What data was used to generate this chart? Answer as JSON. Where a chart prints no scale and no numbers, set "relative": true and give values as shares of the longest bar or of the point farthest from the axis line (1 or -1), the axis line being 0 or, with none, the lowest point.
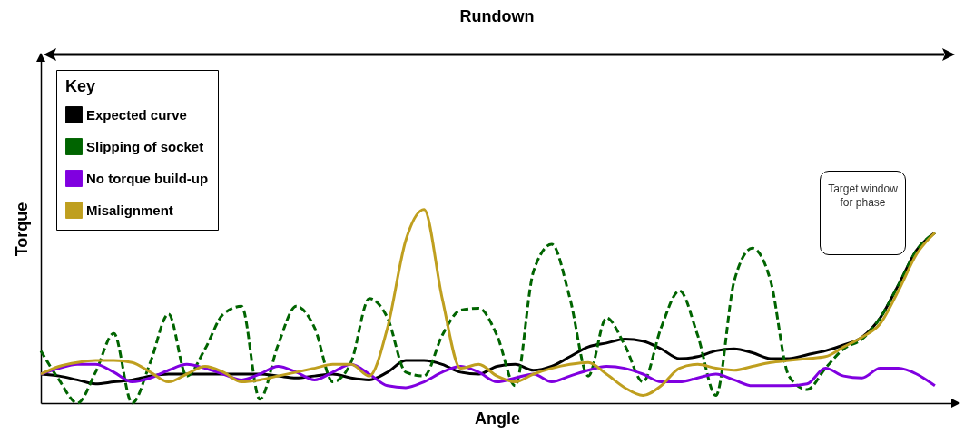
{
  "chart_data": {
    "type": "line",
    "title": "Rundown",
    "xlabel": "Angle",
    "ylabel": "Torque",
    "legend_title": "Key",
    "legend": "top left",
    "relative": true,
    "line_style": "solid",
    "categories": [
      null,
      null,
      null,
      null,
      null,
      null,
      null,
      null,
      null,
      null,
      null,
      null,
      null,
      null,
      null,
      null,
      null,
      null,
      null,
      null,
      null,
      null,
      null,
      null,
      null,
      null,
      null,
      null,
      null,
      null,
      null,
      null,
      null,
      null,
      null,
      null,
      null,
      null,
      null,
      null,
      null,
      null,
      null,
      null,
      null,
      null,
      null,
      null,
      null,
      null
    ],
    "series": [
      {
        "name": "Expected curve",
        "color": "#000000",
        "values": [
          0.15,
          0.14,
          0.12,
          0.1,
          0.11,
          0.12,
          0.14,
          0.15,
          0.15,
          0.15,
          0.15,
          0.15,
          0.15,
          0.14,
          0.13,
          0.14,
          0.15,
          0.13,
          0.12,
          0.16,
          0.22,
          0.22,
          0.2,
          0.16,
          0.15,
          0.19,
          0.2,
          0.17,
          0.19,
          0.24,
          0.29,
          0.31,
          0.33,
          0.32,
          0.28,
          0.23,
          0.24,
          0.27,
          0.28,
          0.26,
          0.23,
          0.23,
          0.25,
          0.27,
          0.3,
          0.34,
          0.44,
          0.61,
          0.79,
          0.88
        ]
      },
      {
        "name": "Slipping of socket",
        "color": "#006400",
        "line_style": "dashed",
        "values": [
          0.27,
          0.12,
          0,
          0.16,
          0.36,
          0,
          0.21,
          0.46,
          0.14,
          0.28,
          0.46,
          0.5,
          0.02,
          0.3,
          0.5,
          0.39,
          0.11,
          0.21,
          0.54,
          0.44,
          0.16,
          0.14,
          0.35,
          0.48,
          0.49,
          0.35,
          0.09,
          0.68,
          0.82,
          0.54,
          0.14,
          0.44,
          0.3,
          0.11,
          0.39,
          0.58,
          0.35,
          0.04,
          0.63,
          0.8,
          0.63,
          0.14,
          0.07,
          0.18,
          0.28,
          0.33,
          0.44,
          0.61,
          0.79,
          0.88
        ]
      },
      {
        "name": "No torque build-up",
        "color": "#8000e0",
        "values": [
          0.15,
          0.18,
          0.2,
          0.2,
          0.16,
          0.11,
          0.13,
          0.17,
          0.2,
          0.18,
          0.15,
          0.12,
          0.15,
          0.19,
          0.16,
          0.12,
          0.16,
          0.2,
          0.15,
          0.09,
          0.08,
          0.11,
          0.16,
          0.19,
          0.16,
          0.11,
          0.13,
          0.15,
          0.11,
          0.14,
          0.17,
          0.19,
          0.18,
          0.15,
          0.11,
          0.11,
          0.13,
          0.15,
          0.12,
          0.09,
          0.09,
          0.09,
          0.1,
          0.18,
          0.14,
          0.13,
          0.18,
          0.18,
          0.15,
          0.09
        ]
      },
      {
        "name": "Misalignment",
        "color": "#bf9f1f",
        "values": [
          0.15,
          0.19,
          0.21,
          0.22,
          0.22,
          0.21,
          0.16,
          0.11,
          0.15,
          0.19,
          0.16,
          0.11,
          0.12,
          0.14,
          0.16,
          0.18,
          0.2,
          0.2,
          0.14,
          0.39,
          0.84,
          1.0,
          0.54,
          0.18,
          0.2,
          0.14,
          0.11,
          0.15,
          0.18,
          0.2,
          0.21,
          0.15,
          0.08,
          0.04,
          0.09,
          0.18,
          0.2,
          0.18,
          0.17,
          0.19,
          0.21,
          0.22,
          0.23,
          0.24,
          0.29,
          0.34,
          0.41,
          0.58,
          0.77,
          0.88
        ]
      }
    ],
    "annotations": [
      "Target window for phase"
    ]
  }
}
